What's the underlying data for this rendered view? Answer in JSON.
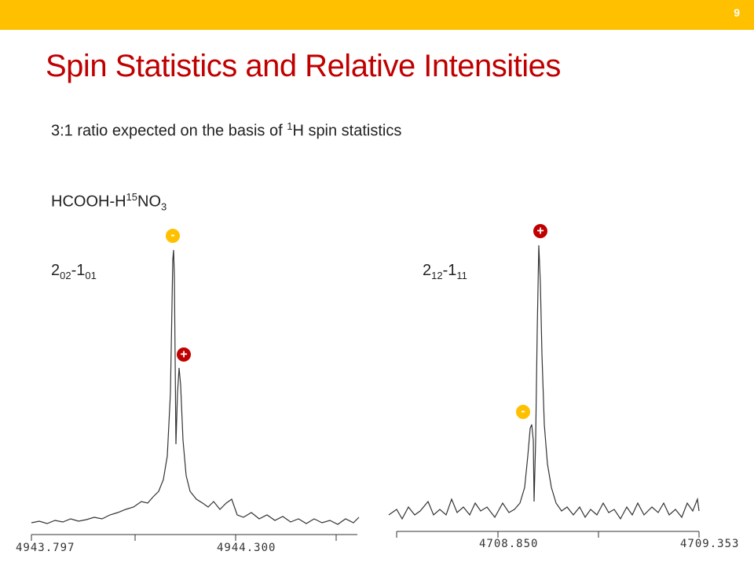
{
  "slide_number": "9",
  "title": "Spin Statistics and Relative Intensities",
  "ratio_line": {
    "before": "3:1 ratio expected on the basis of ",
    "sup": "1",
    "after": "H spin statistics"
  },
  "molecule": {
    "a": "HCOOH-H",
    "sup": "15",
    "b": "NO",
    "sub": "3"
  },
  "left_transition": {
    "a": "2",
    "sub1": "02",
    "b": "-1",
    "sub2": "01"
  },
  "right_transition": {
    "a": "2",
    "sub1": "12",
    "b": "-1",
    "sub2": "11"
  },
  "left_markers": [
    "-",
    "+"
  ],
  "right_markers": [
    "+",
    "-"
  ],
  "left_axis_labels": [
    "4943.797",
    "4944.300"
  ],
  "right_axis_labels": [
    "4708.850",
    "4709.353"
  ]
}
